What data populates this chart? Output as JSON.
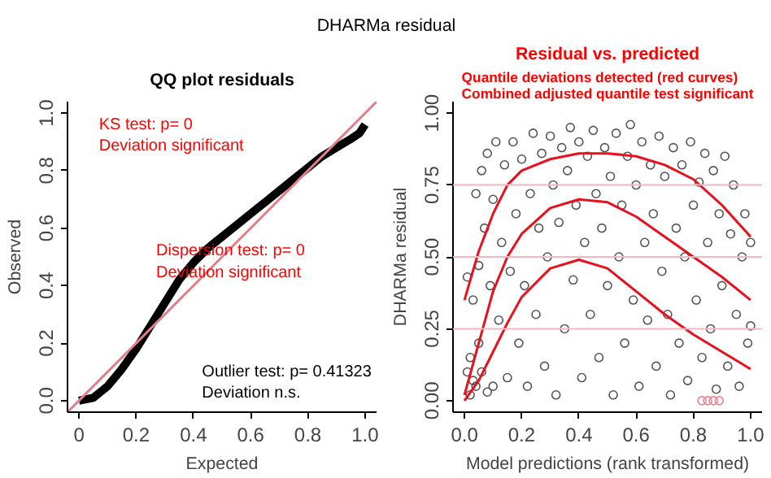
{
  "chart_data": [
    {
      "type": "other",
      "title": "DHARMa residual"
    },
    {
      "type": "line",
      "title": "QQ plot residuals",
      "xlabel": "Expected",
      "ylabel": "Observed",
      "xlim": [
        -0.04,
        1.04
      ],
      "ylim": [
        -0.04,
        1.04
      ],
      "xticks": [
        0,
        {
          "value": 0.2,
          "label": "0.2"
        },
        {
          "value": 0.4,
          "label": "0.4"
        },
        {
          "value": 0.6,
          "label": "0.6"
        },
        {
          "value": 0.8,
          "label": "0.8"
        },
        {
          "value": 1,
          "label": "1.0"
        }
      ],
      "yticks": [
        {
          "value": 0,
          "label": "0.0"
        },
        0.2,
        0.4,
        0.6,
        0.8,
        {
          "value": 1,
          "label": "1.0"
        }
      ],
      "grid": false,
      "series": [
        {
          "type": "line",
          "color": "#000000",
          "marker": "none",
          "x": [
            0,
            0.05,
            0.1,
            0.15,
            0.2,
            0.25,
            0.3,
            0.35,
            0.4,
            0.45,
            0.5,
            0.55,
            0.6,
            0.65,
            0.7,
            0.75,
            0.8,
            0.85,
            0.9,
            0.95,
            0.98,
            1.0
          ],
          "values": [
            0,
            0.01,
            0.05,
            0.11,
            0.18,
            0.26,
            0.34,
            0.42,
            0.48,
            0.53,
            0.57,
            0.61,
            0.65,
            0.69,
            0.73,
            0.77,
            0.81,
            0.85,
            0.88,
            0.91,
            0.93,
            0.96
          ]
        },
        {
          "type": "line",
          "color": "#e0808a",
          "marker": "none",
          "x": [
            -0.04,
            1.04
          ],
          "values": [
            -0.04,
            1.04
          ]
        }
      ],
      "annotations": [
        "KS test: p= 0\nDeviation  significant",
        "Dispersion test: p= 0\nDeviation  significant",
        "Outlier test: p= 0.41323\nDeviation  n.s."
      ]
    },
    {
      "type": "scatter",
      "title": "Residual vs. predicted",
      "subtitle": "Quantile deviations detected (red curves)\nCombined adjusted quantile test significant",
      "xlabel": "Model predictions (rank transformed)",
      "ylabel": "DHARMa residual",
      "xlim": [
        -0.04,
        1.04
      ],
      "ylim": [
        -0.04,
        1.04
      ],
      "xticks": [
        {
          "value": 0,
          "label": "0.0"
        },
        0.2,
        0.4,
        0.6,
        0.8,
        {
          "value": 1,
          "label": "1.0"
        }
      ],
      "yticks": [
        {
          "value": 0,
          "label": "0.00"
        },
        0.25,
        {
          "value": 0.5,
          "label": "0.50"
        },
        0.75,
        {
          "value": 1,
          "label": "1.00"
        }
      ],
      "grid": false,
      "marker": "circle",
      "ref_lines": [
        {
          "axis": "y",
          "value": 0.25,
          "color": "#f4b8c0"
        },
        {
          "axis": "y",
          "value": 0.5,
          "color": "#f4b8c0"
        },
        {
          "axis": "y",
          "value": 0.75,
          "color": "#f4b8c0"
        }
      ],
      "series": [
        {
          "type": "scatter",
          "color": "#555555",
          "x": [
            0.01,
            0.01,
            0.02,
            0.02,
            0.03,
            0.03,
            0.04,
            0.04,
            0.05,
            0.05,
            0.06,
            0.06,
            0.07,
            0.08,
            0.08,
            0.09,
            0.1,
            0.1,
            0.11,
            0.12,
            0.13,
            0.14,
            0.15,
            0.16,
            0.17,
            0.18,
            0.19,
            0.2,
            0.21,
            0.22,
            0.23,
            0.24,
            0.25,
            0.26,
            0.27,
            0.28,
            0.29,
            0.3,
            0.31,
            0.32,
            0.33,
            0.34,
            0.35,
            0.36,
            0.37,
            0.38,
            0.39,
            0.4,
            0.41,
            0.42,
            0.43,
            0.44,
            0.45,
            0.46,
            0.47,
            0.48,
            0.49,
            0.5,
            0.51,
            0.52,
            0.53,
            0.54,
            0.55,
            0.56,
            0.57,
            0.58,
            0.59,
            0.6,
            0.61,
            0.62,
            0.63,
            0.64,
            0.65,
            0.66,
            0.67,
            0.68,
            0.69,
            0.7,
            0.71,
            0.72,
            0.73,
            0.74,
            0.75,
            0.76,
            0.77,
            0.78,
            0.79,
            0.8,
            0.81,
            0.82,
            0.83,
            0.84,
            0.85,
            0.86,
            0.87,
            0.88,
            0.89,
            0.9,
            0.91,
            0.92,
            0.93,
            0.94,
            0.95,
            0.96,
            0.97,
            0.98,
            0.99,
            1.0,
            1.0
          ],
          "values": [
            0.43,
            0.1,
            0.15,
            0.02,
            0.35,
            0.07,
            0.72,
            0.05,
            0.47,
            0.2,
            0.8,
            0.1,
            0.6,
            0.86,
            0.03,
            0.4,
            0.7,
            0.05,
            0.9,
            0.28,
            0.55,
            0.82,
            0.08,
            0.45,
            0.9,
            0.65,
            0.2,
            0.84,
            0.4,
            0.05,
            0.72,
            0.93,
            0.3,
            0.6,
            0.86,
            0.12,
            0.5,
            0.92,
            0.75,
            0.02,
            0.62,
            0.88,
            0.25,
            0.8,
            0.95,
            0.42,
            0.68,
            0.9,
            0.08,
            0.55,
            0.85,
            0.3,
            0.94,
            0.72,
            0.15,
            0.6,
            0.88,
            0.4,
            0.78,
            0.02,
            0.93,
            0.5,
            0.68,
            0.2,
            0.85,
            0.96,
            0.35,
            0.75,
            0.05,
            0.9,
            0.55,
            0.28,
            0.82,
            0.65,
            0.12,
            0.92,
            0.45,
            0.78,
            0.3,
            0.02,
            0.88,
            0.6,
            0.2,
            0.82,
            0.5,
            0.07,
            0.9,
            0.68,
            0.35,
            0.76,
            0.15,
            0.86,
            0.55,
            0.25,
            0.8,
            0.04,
            0.65,
            0.4,
            0.85,
            0.12,
            0.58,
            0.75,
            0.3,
            0.05,
            0.5,
            0.65,
            0.2,
            0.55,
            0.26
          ]
        },
        {
          "type": "scatter",
          "color": "#f08090",
          "x": [
            0.83,
            0.85,
            0.87,
            0.89
          ],
          "values": [
            0,
            0,
            0,
            0
          ]
        },
        {
          "type": "line",
          "color": "#e8101c",
          "marker": "none",
          "x": [
            0,
            0.05,
            0.1,
            0.15,
            0.2,
            0.3,
            0.4,
            0.5,
            0.6,
            0.7,
            0.8,
            0.9,
            1.0
          ],
          "values": [
            0.35,
            0.52,
            0.65,
            0.75,
            0.8,
            0.84,
            0.86,
            0.86,
            0.85,
            0.82,
            0.77,
            0.68,
            0.57
          ]
        },
        {
          "type": "line",
          "color": "#e8101c",
          "marker": "none",
          "x": [
            0,
            0.05,
            0.1,
            0.15,
            0.2,
            0.3,
            0.4,
            0.5,
            0.6,
            0.7,
            0.8,
            0.9,
            1.0
          ],
          "values": [
            0.02,
            0.2,
            0.38,
            0.5,
            0.58,
            0.67,
            0.7,
            0.69,
            0.64,
            0.57,
            0.5,
            0.43,
            0.35
          ]
        },
        {
          "type": "line",
          "color": "#e8101c",
          "marker": "none",
          "x": [
            0,
            0.05,
            0.1,
            0.15,
            0.2,
            0.3,
            0.4,
            0.5,
            0.6,
            0.7,
            0.8,
            0.9,
            1.0
          ],
          "values": [
            0,
            0.07,
            0.17,
            0.27,
            0.36,
            0.46,
            0.49,
            0.46,
            0.38,
            0.3,
            0.23,
            0.17,
            0.11
          ]
        }
      ]
    }
  ]
}
